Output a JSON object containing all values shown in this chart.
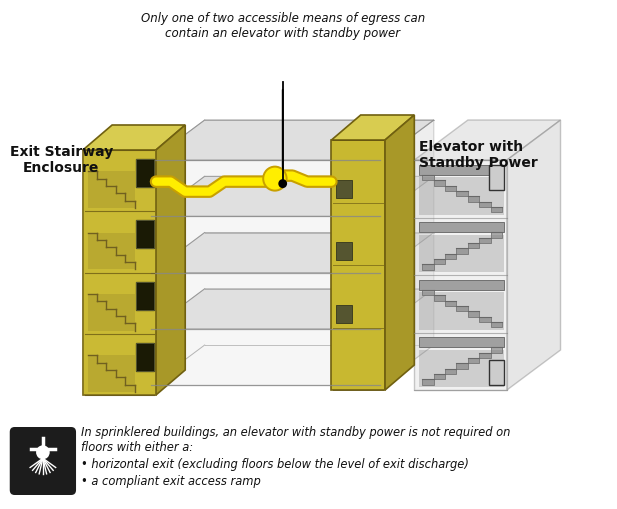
{
  "title_note": "Only one of two accessible means of egress can\ncontain an elevator with standby power",
  "label_left": "Exit Stairway\nEnclosure",
  "label_right": "Elevator with\nStandby Power",
  "footer_text_main": "In sprinklered buildings, an elevator with standby power is not required on\nfloors with either a:",
  "footer_bullet1": "horizontal exit (excluding floors below the level of exit discharge)",
  "footer_bullet2": "a compliant exit access ramp",
  "bg_color": "#ffffff",
  "stair_face": "#c8b830",
  "stair_top": "#d8cc50",
  "stair_side": "#a89828",
  "stair_outline": "#706010",
  "elev_face": "#c8b830",
  "elev_top": "#d8cc50",
  "elev_side": "#a89828",
  "elev_outline": "#706010",
  "floor_front": "#d0d0d0",
  "floor_top": "#e0e0e0",
  "floor_outline": "#888888",
  "glass_color": "#d8d8d8",
  "glass_alpha": 0.45,
  "stair_inner": "#888878",
  "door_color": "#2a2a1a",
  "door_frame": "#111100",
  "route_yellow": "#ffee00",
  "route_outline": "#c8a000",
  "sprinkler_bg": "#1c1c1c",
  "num_floors": 4
}
